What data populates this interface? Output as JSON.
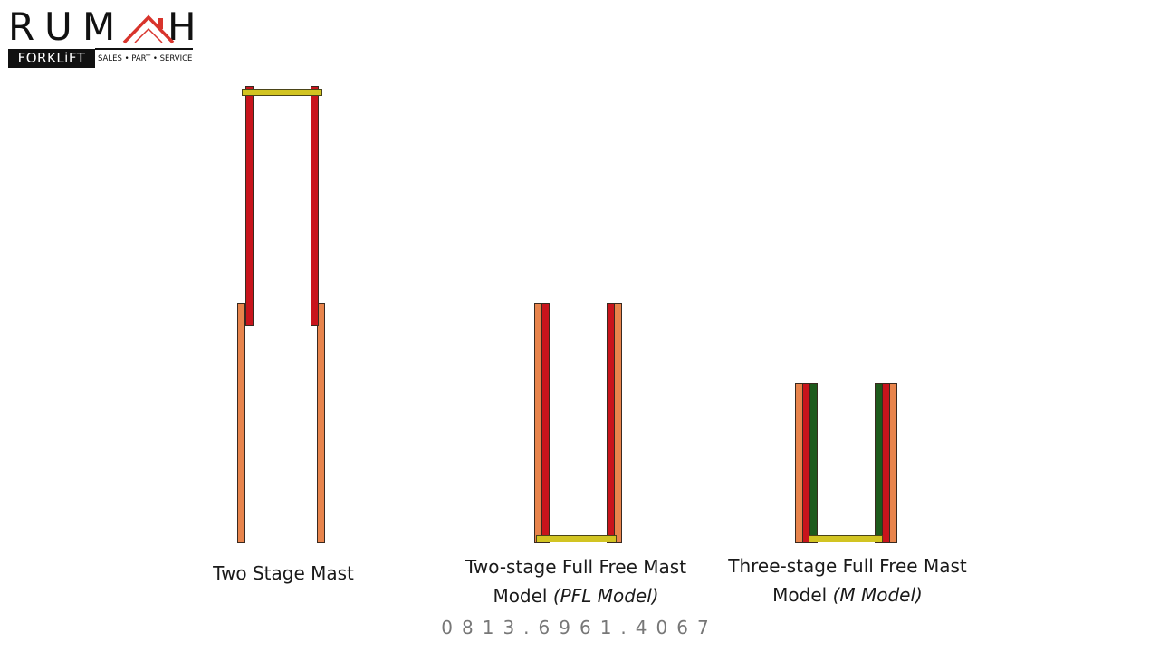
{
  "logo": {
    "letters": [
      "R",
      "U",
      "M",
      "H"
    ],
    "roof_icon": "house-roof-icon",
    "brand_bar": "FORKLiFT",
    "tagline": "SALES • PART • SERVICE"
  },
  "masts": [
    {
      "caption_line1": "Two Stage Mast",
      "caption_line2": ""
    },
    {
      "caption_line1": "Two-stage Full Free Mast",
      "caption_line2_prefix": "Model ",
      "caption_line2_italic": "(PFL Model)"
    },
    {
      "caption_line1": "Three-stage Full Free Mast",
      "caption_line2_prefix": "Model ",
      "caption_line2_italic": "(M Model)"
    }
  ],
  "phone": "0813.6961.4067",
  "colors": {
    "outer_rail": "#e8844c",
    "inner_rail": "#c8141c",
    "middle_rail": "#1e5a1c",
    "carriage": "#d2c422",
    "roof": "#d8342c"
  }
}
